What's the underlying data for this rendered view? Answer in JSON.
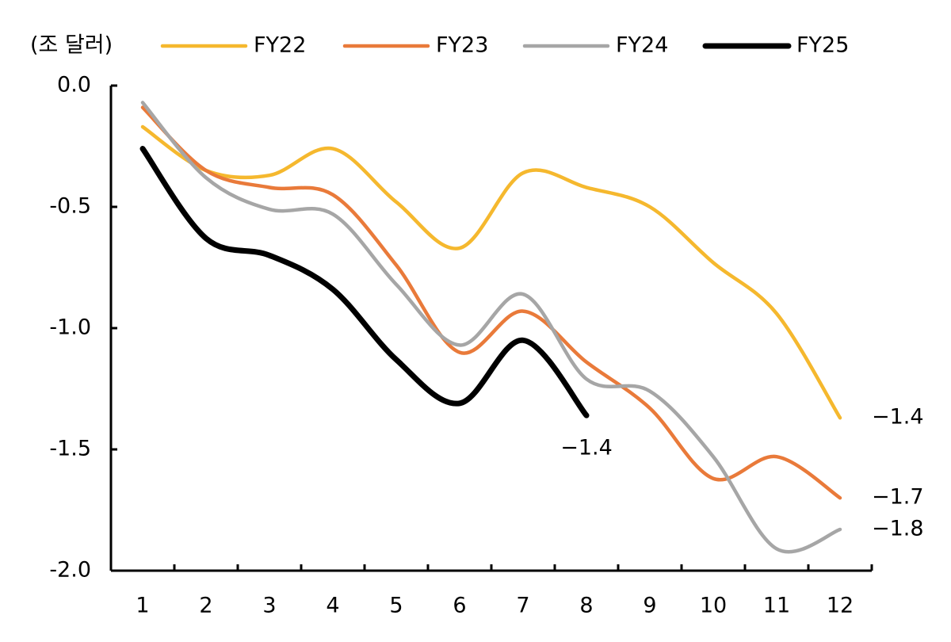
{
  "chart_data": {
    "type": "line",
    "y_unit_label": "(조 달러)",
    "categories": [
      "1",
      "2",
      "3",
      "4",
      "5",
      "6",
      "7",
      "8",
      "9",
      "10",
      "11",
      "12"
    ],
    "series": [
      {
        "name": "FY22",
        "color": "#f5b82e",
        "values": [
          -0.17,
          -0.35,
          -0.37,
          -0.26,
          -0.48,
          -0.67,
          -0.36,
          -0.42,
          -0.5,
          -0.73,
          -0.94,
          -1.37
        ],
        "value_labels": [
          null,
          null,
          null,
          null,
          null,
          null,
          null,
          null,
          null,
          null,
          null,
          "−1.4"
        ]
      },
      {
        "name": "FY23",
        "color": "#e97a3a",
        "values": [
          -0.09,
          -0.35,
          -0.42,
          -0.45,
          -0.74,
          -1.1,
          -0.93,
          -1.14,
          -1.33,
          -1.62,
          -1.53,
          -1.7
        ],
        "value_labels": [
          null,
          null,
          null,
          null,
          null,
          null,
          null,
          null,
          null,
          null,
          null,
          "−1.7"
        ]
      },
      {
        "name": "FY24",
        "color": "#a6a6a6",
        "values": [
          -0.07,
          -0.38,
          -0.51,
          -0.53,
          -0.82,
          -1.07,
          -0.86,
          -1.21,
          -1.26,
          -1.53,
          -1.91,
          -1.83
        ],
        "value_labels": [
          null,
          null,
          null,
          null,
          null,
          null,
          null,
          null,
          null,
          null,
          null,
          "−1.8"
        ]
      },
      {
        "name": "FY25",
        "color": "#000000",
        "values": [
          -0.26,
          -0.63,
          -0.7,
          -0.84,
          -1.13,
          -1.31,
          -1.05,
          -1.36,
          null,
          null,
          null,
          null
        ],
        "value_labels": [
          null,
          null,
          null,
          null,
          null,
          null,
          null,
          "−1.4",
          null,
          null,
          null,
          null
        ]
      }
    ],
    "ylim": [
      -2.0,
      0.0
    ],
    "yticks": [
      {
        "value": 0.0,
        "label": "0.0"
      },
      {
        "value": -0.5,
        "label": "-0.5"
      },
      {
        "value": -1.0,
        "label": "-1.0"
      },
      {
        "value": -1.5,
        "label": "-1.5"
      },
      {
        "value": -2.0,
        "label": "-2.0"
      }
    ],
    "grid": false,
    "legend": "top"
  }
}
